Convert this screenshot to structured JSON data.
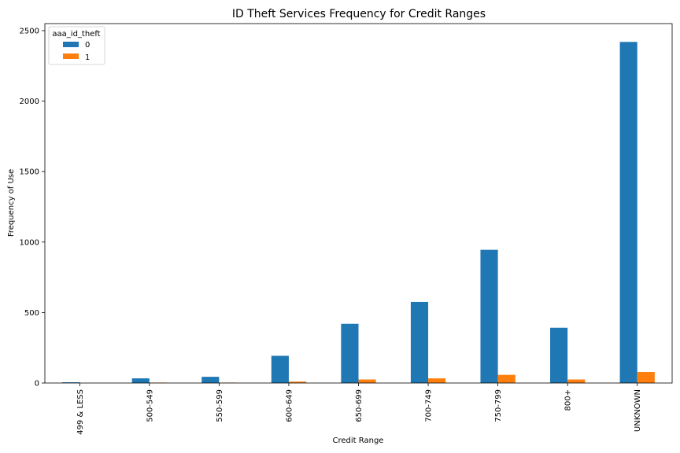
{
  "chart_data": {
    "type": "bar",
    "title": "ID Theft Services Frequency for Credit Ranges",
    "xlabel": "Credit Range",
    "ylabel": "Frequency of Use",
    "categories": [
      "499 & LESS",
      "500-549",
      "550-599",
      "600-649",
      "650-699",
      "700-749",
      "750-799",
      "800+",
      "UNKNOWN"
    ],
    "series": [
      {
        "name": "0",
        "color": "#1f77b4",
        "values": [
          5,
          33,
          44,
          193,
          420,
          575,
          945,
          392,
          2420
        ]
      },
      {
        "name": "1",
        "color": "#ff7f0e",
        "values": [
          0,
          3,
          3,
          10,
          25,
          33,
          58,
          25,
          78
        ]
      }
    ],
    "ylim": [
      0,
      2550
    ],
    "yticks": [
      0,
      500,
      1000,
      1500,
      2000,
      2500
    ],
    "grid": false,
    "legend": {
      "title": "aaa_id_theft",
      "placement": "top-left"
    }
  }
}
